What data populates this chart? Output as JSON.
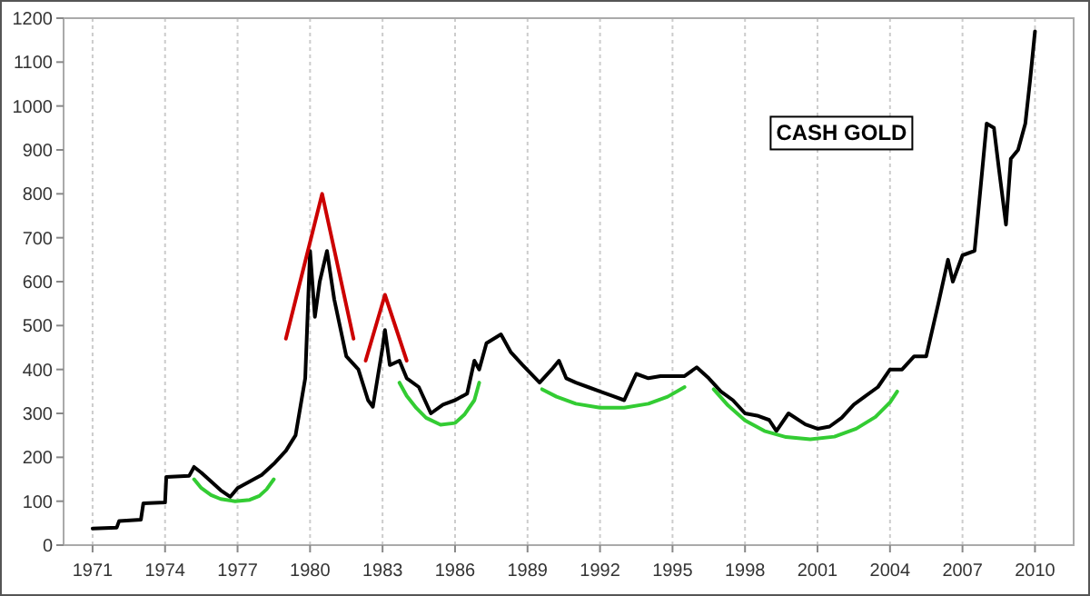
{
  "chart_data": {
    "type": "line",
    "title": "CASH GOLD",
    "x": [
      1971,
      1972,
      1972.1,
      1973,
      1973.1,
      1974,
      1974.05,
      1975,
      1975.2,
      1975.5,
      1976,
      1976.3,
      1976.7,
      1977,
      1977.5,
      1978,
      1978.5,
      1979,
      1979.4,
      1979.8,
      1980,
      1980.2,
      1980.4,
      1980.7,
      1981,
      1981.5,
      1982,
      1982.4,
      1982.6,
      1983,
      1983.1,
      1983.3,
      1983.7,
      1984,
      1984.5,
      1985,
      1985.5,
      1986,
      1986.5,
      1986.8,
      1987,
      1987.3,
      1987.9,
      1988.3,
      1988.8,
      1989.5,
      1990,
      1990.3,
      1990.6,
      1991,
      1991.5,
      1992,
      1992.5,
      1993,
      1993.5,
      1994,
      1994.5,
      1995,
      1995.5,
      1996,
      1996.5,
      1997,
      1997.5,
      1998,
      1998.5,
      1999,
      1999.3,
      1999.8,
      2000.5,
      2001,
      2001.5,
      2002,
      2002.5,
      2003,
      2003.5,
      2004,
      2004.5,
      2005,
      2005.5,
      2006,
      2006.4,
      2006.6,
      2007,
      2007.5,
      2008,
      2008.3,
      2008.5,
      2008.8,
      2009,
      2009.3,
      2009.6,
      2009.8,
      2010
    ],
    "series": [
      {
        "color": "#000000",
        "values": [
          38,
          40,
          55,
          58,
          95,
          97,
          155,
          158,
          178,
          165,
          140,
          125,
          110,
          130,
          145,
          160,
          185,
          215,
          250,
          380,
          670,
          520,
          600,
          670,
          560,
          430,
          400,
          330,
          315,
          450,
          490,
          410,
          420,
          380,
          360,
          300,
          320,
          330,
          345,
          420,
          400,
          460,
          480,
          440,
          410,
          370,
          400,
          420,
          380,
          370,
          360,
          350,
          340,
          330,
          390,
          380,
          385,
          385,
          385,
          405,
          380,
          350,
          330,
          300,
          295,
          285,
          260,
          300,
          275,
          265,
          270,
          290,
          320,
          340,
          360,
          400,
          400,
          430,
          430,
          550,
          650,
          600,
          660,
          670,
          960,
          950,
          860,
          730,
          880,
          900,
          960,
          1060,
          1170
        ]
      },
      {
        "color": "#cc0000",
        "x": [
          1979,
          1980.5,
          1981.8
        ],
        "values": [
          470,
          800,
          470
        ]
      },
      {
        "color": "#cc0000",
        "x": [
          1982.3,
          1983.1,
          1984.0
        ],
        "values": [
          420,
          570,
          420
        ]
      },
      {
        "color": "#33cc33",
        "x": [
          1975.2,
          1975.5,
          1975.9,
          1976.3,
          1976.9,
          1977.5,
          1977.9,
          1978.2,
          1978.5
        ],
        "values": [
          150,
          130,
          114,
          105,
          100,
          103,
          112,
          127,
          150
        ]
      },
      {
        "color": "#33cc33",
        "x": [
          1983.7,
          1984.0,
          1984.4,
          1984.8,
          1985.4,
          1986.0,
          1986.4,
          1986.8,
          1987.0
        ],
        "values": [
          370,
          340,
          312,
          290,
          274,
          278,
          298,
          330,
          370
        ]
      },
      {
        "color": "#33cc33",
        "x": [
          1989.6,
          1990.2,
          1991.0,
          1992.0,
          1993.0,
          1994.0,
          1994.8,
          1995.5
        ],
        "values": [
          355,
          338,
          322,
          313,
          313,
          322,
          338,
          360
        ]
      },
      {
        "color": "#33cc33",
        "x": [
          1996.7,
          1997.3,
          1998.0,
          1998.8,
          1999.7,
          2000.7,
          2001.7,
          2002.6,
          2003.4,
          2004.0,
          2004.3
        ],
        "values": [
          355,
          318,
          284,
          260,
          246,
          241,
          247,
          265,
          292,
          325,
          350
        ]
      }
    ],
    "xlim": [
      1969.8,
      2011.6
    ],
    "xticks": [
      1971,
      1974,
      1977,
      1980,
      1983,
      1986,
      1989,
      1992,
      1995,
      1998,
      2001,
      2004,
      2007,
      2010
    ],
    "ylim": [
      0,
      1200
    ],
    "yticks": [
      0,
      100,
      200,
      300,
      400,
      500,
      600,
      700,
      800,
      900,
      1000,
      1100,
      1200
    ],
    "grid": "x",
    "marker": "none",
    "line_style": "solid"
  }
}
